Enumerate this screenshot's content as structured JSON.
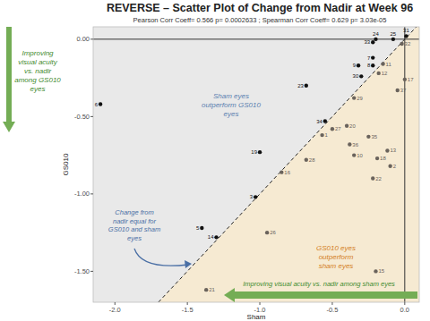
{
  "chart_data": {
    "type": "scatter",
    "title": "REVERSE – Scatter Plot of Change from Nadir at Week 96",
    "subtitle": "Pearson Corr Coeff= 0.566 p= 0.0002633 ; Spearman Corr Coeff= 0.629 p= 3.03e-05",
    "x_label": "Sham",
    "y_label": "GS010",
    "xlim": [
      -2.15,
      0.1
    ],
    "ylim": [
      -1.7,
      0.08
    ],
    "xticks": [
      {
        "value": -2,
        "label": "-2.0"
      },
      -1.5,
      {
        "value": -1,
        "label": "-1.0"
      },
      -0.5,
      {
        "value": 0,
        "label": "0.0"
      }
    ],
    "yticks": [
      {
        "value": 0,
        "label": "0.00"
      },
      {
        "value": -0.5,
        "label": "-0.50"
      },
      {
        "value": -1,
        "label": "-1.00"
      },
      {
        "value": -1.5,
        "label": "-1.50"
      }
    ],
    "grid": false,
    "marker": "circle",
    "series": [
      {
        "labels": [
          "1",
          "2",
          "3",
          "5",
          "6",
          "7",
          "8",
          "9",
          "10",
          "11",
          "12",
          "13",
          "14",
          "15",
          "16",
          "17",
          "18",
          "19",
          "20",
          "21",
          "22",
          "23",
          "24",
          "25",
          "26",
          "27",
          "28",
          "29",
          "30",
          "31",
          "32",
          "33",
          "34",
          "35",
          "36",
          "37"
        ],
        "x": [
          -0.57,
          -0.1,
          -1.03,
          -1.4,
          -2.1,
          -0.22,
          -0.22,
          -0.32,
          -0.35,
          -0.15,
          -0.18,
          -0.12,
          -1.3,
          -0.2,
          -0.85,
          0.0,
          -0.19,
          -1.0,
          -0.4,
          -1.37,
          -0.22,
          -0.68,
          -0.2,
          -0.08,
          -0.95,
          -0.5,
          -0.68,
          -0.35,
          -0.3,
          0.01,
          -0.02,
          -0.22,
          -0.55,
          -0.25,
          -0.38,
          -0.05
        ],
        "values": [
          -0.62,
          -0.82,
          -1.02,
          -1.22,
          -0.42,
          -0.12,
          -0.17,
          -0.17,
          -0.75,
          -0.16,
          -0.22,
          -0.72,
          -1.28,
          -1.5,
          -0.86,
          -0.26,
          -0.77,
          -0.73,
          -0.56,
          -1.62,
          -0.9,
          -0.3,
          0.0,
          0.0,
          -1.25,
          -0.58,
          -0.78,
          -0.38,
          -0.24,
          0.02,
          -0.03,
          -0.02,
          -0.53,
          -0.63,
          -0.68,
          -0.33
        ],
        "colors": [
          "#6a635c",
          "#6a635c",
          "#111111",
          "#111111",
          "#111111",
          "#111111",
          "#111111",
          "#111111",
          "#6a635c",
          "#6a635c",
          "#6a635c",
          "#6a635c",
          "#111111",
          "#6a635c",
          "#6a635c",
          "#6a635c",
          "#6a635c",
          "#111111",
          "#6a635c",
          "#6a635c",
          "#6a635c",
          "#111111",
          "#111111",
          "#111111",
          "#6a635c",
          "#6a635c",
          "#6a635c",
          "#6a635c",
          "#111111",
          "#111111",
          "#6a635c",
          "#111111",
          "#111111",
          "#6a635c",
          "#6a635c",
          "#6a635c"
        ]
      }
    ],
    "annotations": [
      {
        "lines": [
          "Improving",
          "visual acuity",
          "vs. nadir",
          "among GS010",
          "eyes"
        ]
      },
      {
        "lines": [
          "Sham eyes",
          "outperform GS010",
          "eyes"
        ]
      },
      {
        "lines": [
          "GS010 eyes",
          "outperform",
          "sham eyes"
        ]
      },
      {
        "lines": [
          "Change from",
          "nadir equal  for",
          "GS010 and sham",
          "eyes"
        ]
      },
      {
        "lines": [
          "Improving visual acuity vs. nadir among sham eyes"
        ]
      }
    ]
  }
}
